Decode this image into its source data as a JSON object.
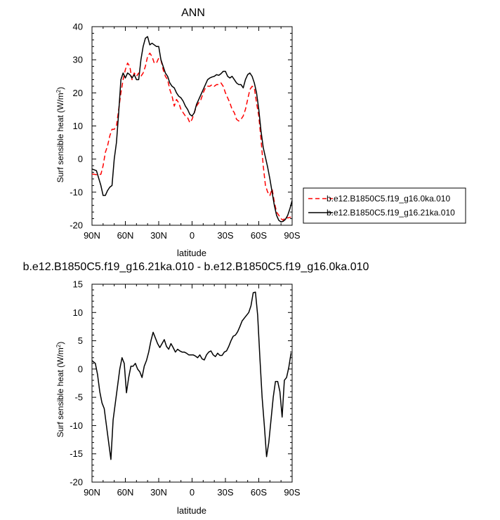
{
  "chart_data": [
    {
      "type": "line",
      "title": "ANN",
      "xlabel": "latitude",
      "ylabel": "Surf sensible heat (W/m",
      "ylabel_sup": "2",
      "ylabel_close": ")",
      "xlim": [
        90,
        -90
      ],
      "ylim": [
        -20,
        40
      ],
      "x_tick_values": [
        90,
        60,
        30,
        0,
        -30,
        -60,
        -90
      ],
      "x_tick_labels": [
        "90N",
        "60N",
        "30N",
        "0",
        "30S",
        "60S",
        "90S"
      ],
      "y_ticks": [
        -20,
        -10,
        0,
        10,
        20,
        30,
        40
      ],
      "legend_position": "right",
      "series": [
        {
          "name": "b.e12.B1850C5.f19_g16.0ka.010",
          "color": "#ff0000",
          "dash": "dashed",
          "x": [
            90,
            86,
            82,
            80,
            78,
            76,
            74,
            72,
            70,
            68,
            66,
            64,
            62,
            60,
            58,
            56,
            54,
            52,
            50,
            48,
            46,
            44,
            42,
            40,
            38,
            36,
            34,
            32,
            30,
            28,
            26,
            24,
            22,
            20,
            18,
            16,
            14,
            12,
            10,
            8,
            6,
            4,
            2,
            0,
            -2,
            -4,
            -6,
            -8,
            -10,
            -12,
            -14,
            -16,
            -18,
            -20,
            -22,
            -24,
            -26,
            -28,
            -30,
            -32,
            -34,
            -36,
            -38,
            -40,
            -42,
            -44,
            -46,
            -48,
            -50,
            -52,
            -54,
            -56,
            -58,
            -60,
            -62,
            -64,
            -66,
            -68,
            -70,
            -72,
            -74,
            -76,
            -78,
            -80,
            -82,
            -84,
            -86,
            -88,
            -90
          ],
          "y": [
            -4.5,
            -4.7,
            -4.6,
            -2,
            2,
            4,
            7,
            9,
            9,
            10,
            15,
            20,
            24,
            27,
            29,
            28,
            24,
            26,
            25,
            26,
            25,
            26,
            28,
            31,
            32,
            31,
            29,
            29,
            30.5,
            30,
            27,
            25,
            24,
            21,
            19,
            16,
            18,
            17,
            15,
            14,
            13,
            12.5,
            11,
            12,
            14,
            16,
            17,
            18,
            20,
            21.5,
            22,
            22,
            22.5,
            22,
            22.5,
            22.5,
            23,
            22,
            20,
            18.5,
            17,
            15,
            14,
            12,
            11.5,
            12,
            13,
            15,
            18,
            21,
            22,
            21.5,
            17,
            13,
            6,
            -2,
            -8,
            -10,
            -11,
            -9,
            -13,
            -16,
            -17,
            -18,
            -18.5,
            -17.5,
            -17.8,
            -17.6,
            -17.5
          ]
        },
        {
          "name": "b.e12.B1850C5.f19_g16.21ka.010",
          "color": "#000000",
          "dash": "solid",
          "x": [
            90,
            86,
            82,
            80,
            78,
            76,
            74,
            72,
            70,
            68,
            66,
            64,
            62,
            60,
            58,
            56,
            54,
            52,
            50,
            48,
            46,
            44,
            42,
            40,
            38,
            36,
            34,
            32,
            30,
            28,
            26,
            24,
            22,
            20,
            18,
            16,
            14,
            12,
            10,
            8,
            6,
            4,
            2,
            0,
            -2,
            -4,
            -6,
            -8,
            -10,
            -12,
            -14,
            -16,
            -18,
            -20,
            -22,
            -24,
            -26,
            -28,
            -30,
            -32,
            -34,
            -36,
            -38,
            -40,
            -42,
            -44,
            -46,
            -48,
            -50,
            -52,
            -54,
            -56,
            -58,
            -60,
            -62,
            -64,
            -66,
            -68,
            -70,
            -72,
            -74,
            -76,
            -78,
            -80,
            -82,
            -84,
            -86,
            -88,
            -90
          ],
          "y": [
            -3,
            -3.5,
            -8,
            -11,
            -11,
            -9.5,
            -8.5,
            -8,
            0,
            5,
            14,
            24,
            26,
            24.5,
            26,
            25.5,
            24.5,
            25.5,
            24,
            24,
            30,
            34,
            36.5,
            37,
            34.5,
            35,
            34.5,
            34,
            34,
            30,
            28,
            26,
            25,
            23,
            22,
            21.5,
            20,
            19,
            18.5,
            17.5,
            16,
            15,
            13.5,
            13,
            14,
            16.5,
            18,
            19.5,
            21,
            22.5,
            24,
            24.5,
            24.8,
            25,
            25.5,
            25.3,
            25.8,
            26.5,
            26.5,
            25,
            24.5,
            25,
            24,
            23,
            22.5,
            22.5,
            21.5,
            24,
            25.5,
            26,
            25,
            23,
            20,
            15,
            8.5,
            3.5,
            0.5,
            -2.5,
            -6,
            -10,
            -14,
            -17,
            -18.5,
            -19,
            -18.8,
            -18.2,
            -17,
            -15,
            -12.5
          ]
        }
      ]
    },
    {
      "type": "line",
      "title": "b.e12.B1850C5.f19_g16.21ka.010 - b.e12.B1850C5.f19_g16.0ka.010",
      "xlabel": "latitude",
      "ylabel": "Surf sensible heat (W/m",
      "ylabel_sup": "2",
      "ylabel_close": ")",
      "xlim": [
        90,
        -90
      ],
      "ylim": [
        -20,
        15
      ],
      "x_tick_values": [
        90,
        60,
        30,
        0,
        -30,
        -60,
        -90
      ],
      "x_tick_labels": [
        "90N",
        "60N",
        "30N",
        "0",
        "30S",
        "60S",
        "90S"
      ],
      "y_ticks": [
        -20,
        -15,
        -10,
        -5,
        0,
        5,
        10,
        15
      ],
      "series": [
        {
          "color": "#000000",
          "dash": "solid",
          "x": [
            90,
            87,
            85,
            83,
            81,
            79,
            77,
            75,
            73,
            71,
            69,
            67,
            65,
            63,
            61,
            59,
            57,
            55,
            53,
            51,
            49,
            47,
            45,
            43,
            41,
            39,
            37,
            35,
            33,
            31,
            29,
            27,
            25,
            23,
            21,
            19,
            17,
            15,
            13,
            11,
            9,
            7,
            5,
            3,
            1,
            -1,
            -3,
            -5,
            -7,
            -9,
            -11,
            -13,
            -15,
            -17,
            -19,
            -21,
            -23,
            -25,
            -27,
            -29,
            -31,
            -33,
            -35,
            -37,
            -39,
            -41,
            -43,
            -45,
            -47,
            -49,
            -51,
            -53,
            -55,
            -57,
            -59,
            -61,
            -63,
            -65,
            -67,
            -69,
            -71,
            -73,
            -75,
            -77,
            -79,
            -81,
            -83,
            -85,
            -87,
            -89
          ],
          "y": [
            1.5,
            1,
            -1,
            -4,
            -6,
            -7,
            -10,
            -13,
            -16,
            -9,
            -6,
            -3,
            0,
            2,
            1,
            -4.2,
            -1.5,
            0.5,
            0.5,
            1,
            0,
            -0.5,
            -1.5,
            0.5,
            1.5,
            3,
            5,
            6.5,
            5.5,
            4.5,
            3.8,
            4.5,
            5.2,
            4,
            3.5,
            4.5,
            3.8,
            3,
            3.5,
            3.2,
            3,
            3,
            2.8,
            2.5,
            2.5,
            2.5,
            2.3,
            2,
            2.5,
            1.8,
            1.6,
            2.5,
            3,
            3.2,
            2.5,
            2.2,
            2.8,
            2.4,
            2.4,
            3,
            3.2,
            4,
            5,
            5.8,
            6,
            6.6,
            7.5,
            8.5,
            9,
            9.5,
            10,
            11.2,
            13.5,
            13.6,
            9.5,
            2,
            -5,
            -10,
            -15.5,
            -13,
            -9,
            -5,
            -2.2,
            -2.2,
            -4,
            -8.5,
            -2,
            -1.5,
            0.3,
            2.8
          ]
        }
      ]
    }
  ]
}
